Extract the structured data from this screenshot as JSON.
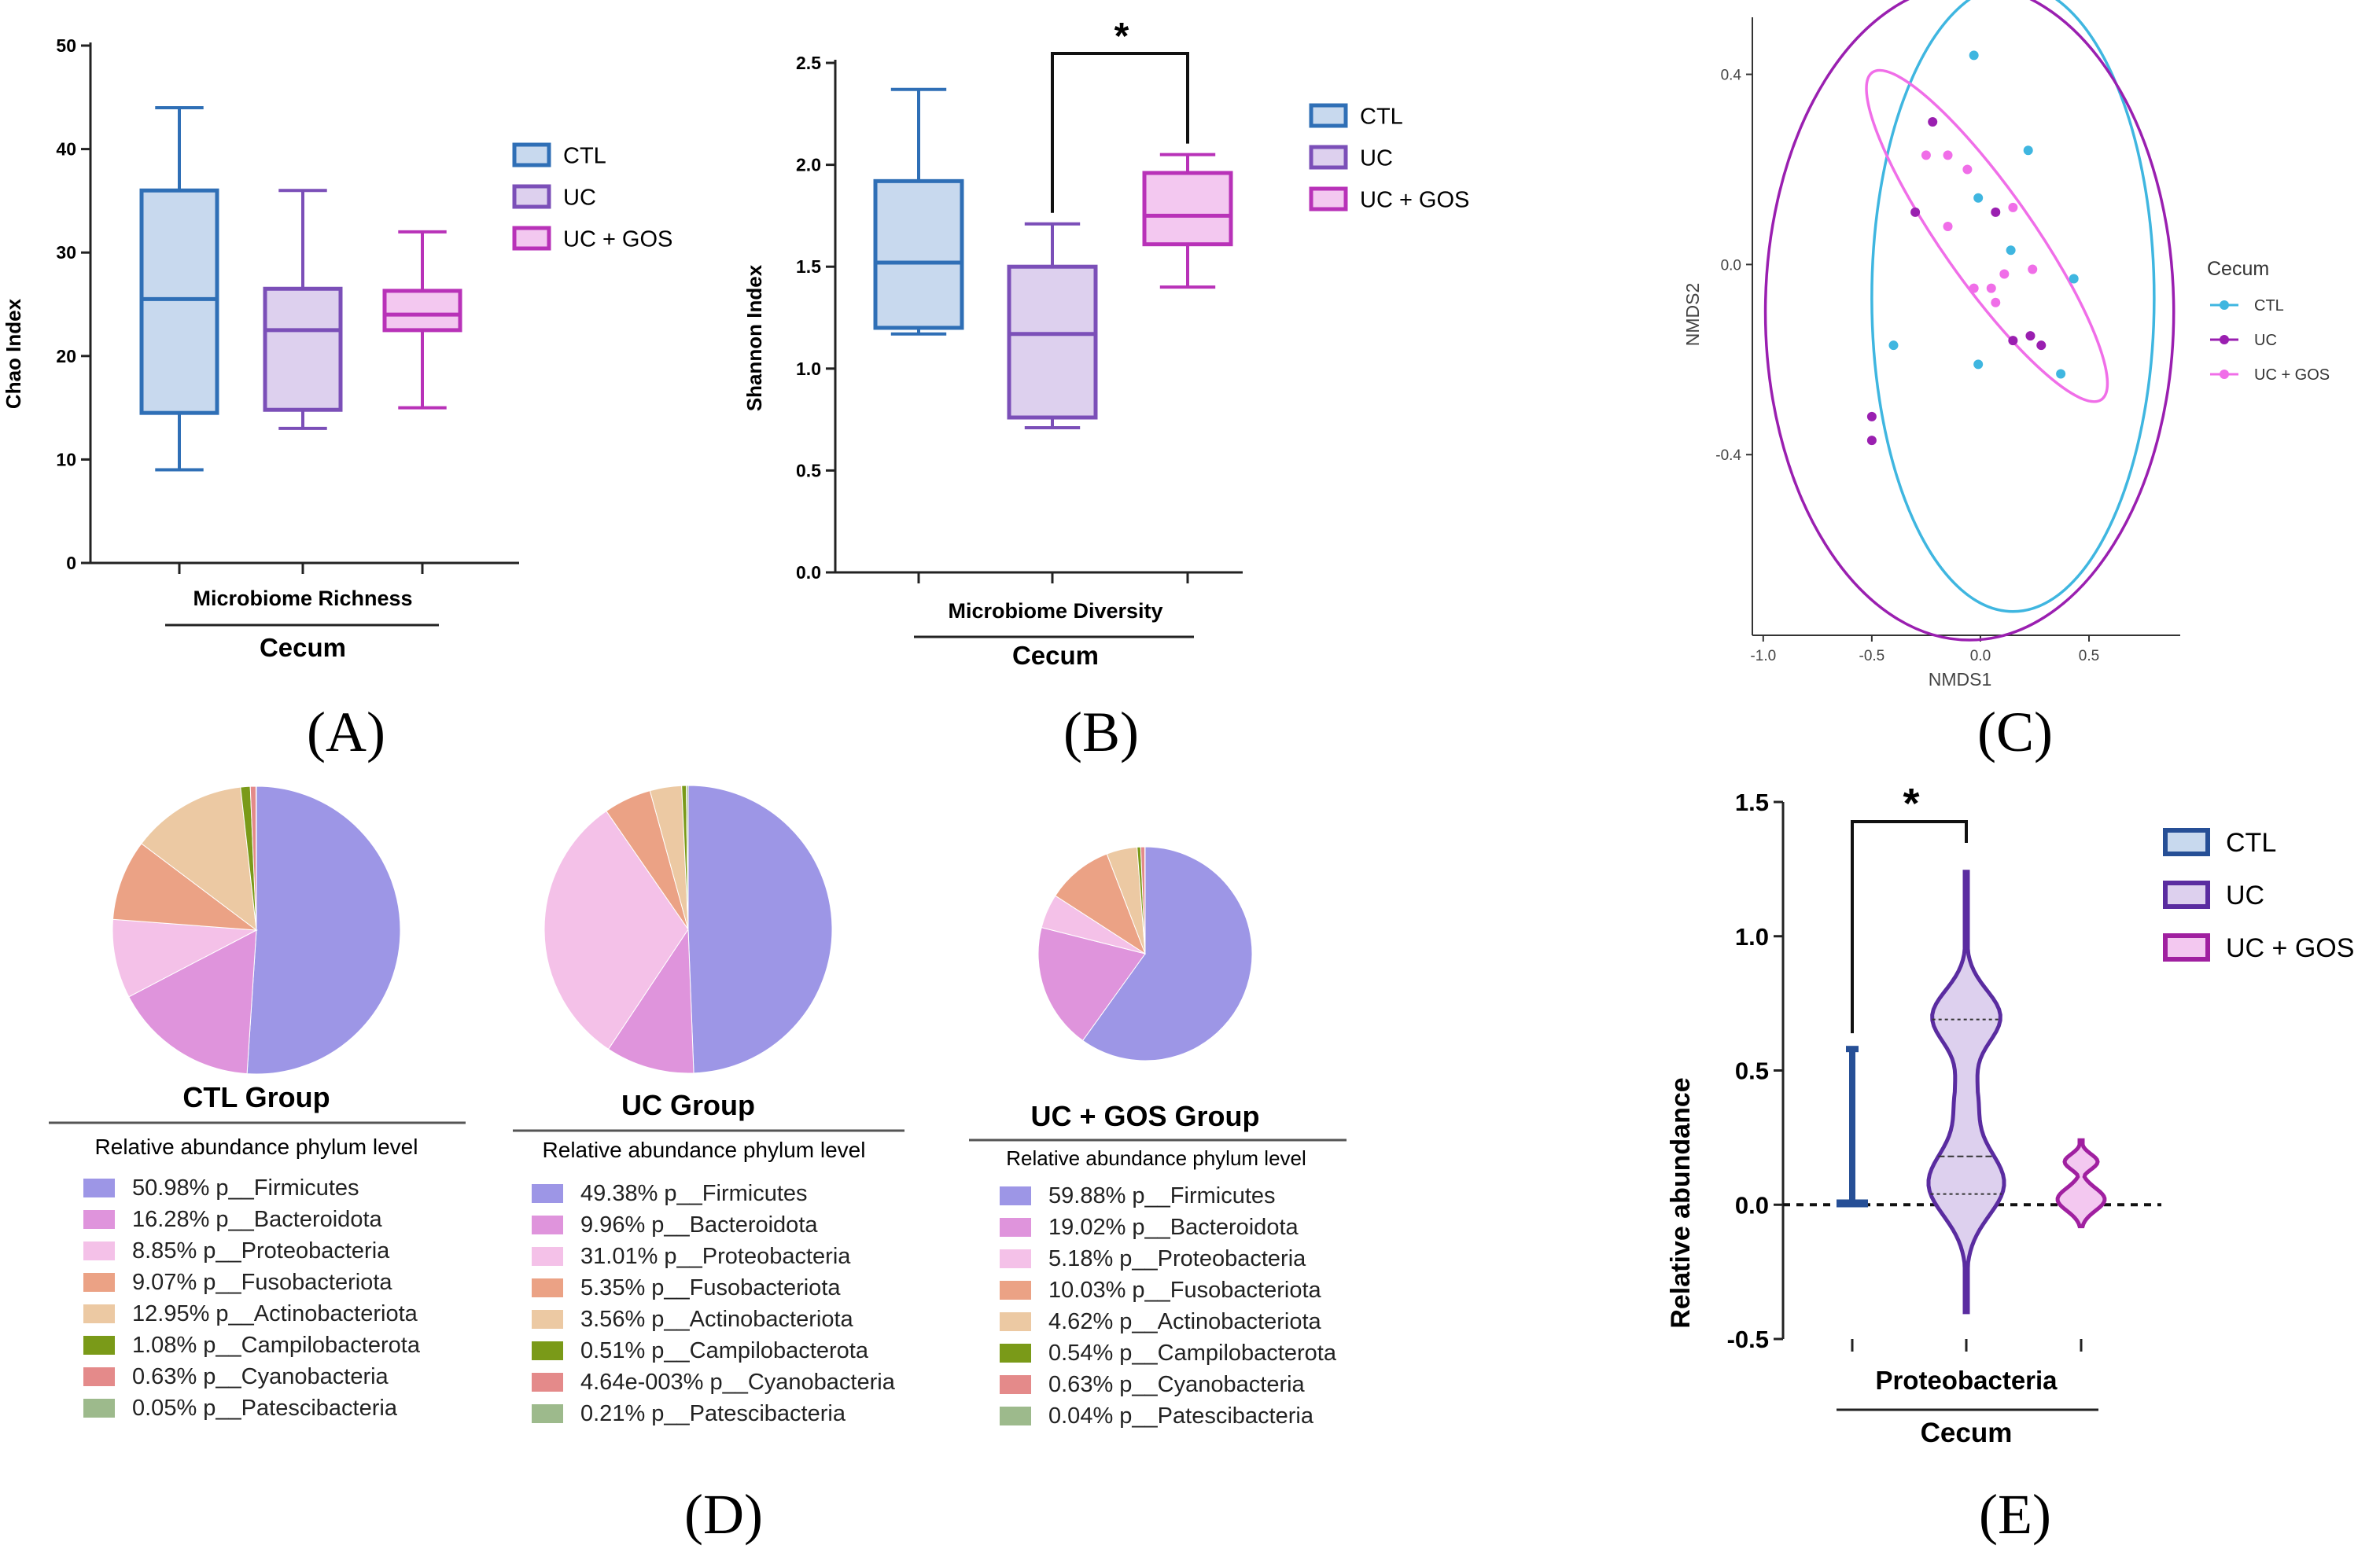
{
  "colors": {
    "ctl": "#2f6fb6",
    "ctl_fill": "#c8d9ee",
    "uc": "#7b4fb8",
    "uc_fill": "#ddd0ee",
    "gos": "#b832b8",
    "gos_fill": "#f3c8f0",
    "nmds_ctl": "#3fb6e0",
    "nmds_uc": "#9a1fb0",
    "nmds_gos": "#f06ee8",
    "vio_ctl": "#264f96",
    "vio_uc": "#5a2ca0",
    "vio_gos": "#a020a0",
    "phyla": [
      "#9d96e6",
      "#df94dc",
      "#f4c1e8",
      "#eba285",
      "#ecc9a3",
      "#7a9a18",
      "#e48a8a",
      "#9dba8c"
    ]
  },
  "legend_groups": [
    "CTL",
    "UC",
    "UC + GOS"
  ],
  "chart_data": [
    {
      "panel": "(A)",
      "type": "box",
      "ylabel": "Chao Index",
      "ylim": [
        0,
        50
      ],
      "yticks": [
        0,
        10,
        20,
        30,
        40,
        50
      ],
      "xlabel": "Microbiome Richness",
      "group_label": "Cecum",
      "series": [
        {
          "name": "CTL",
          "min": 9,
          "q1": 14.5,
          "median": 25.5,
          "q3": 36,
          "max": 44
        },
        {
          "name": "UC",
          "min": 13,
          "q1": 14.8,
          "median": 22.5,
          "q3": 26.5,
          "max": 36
        },
        {
          "name": "UC + GOS",
          "min": 15,
          "q1": 22.5,
          "median": 24,
          "q3": 26.3,
          "max": 32
        }
      ]
    },
    {
      "panel": "(B)",
      "type": "box",
      "ylabel": "Shannon Index",
      "ylim": [
        0,
        2.5
      ],
      "yticks": [
        "0.0",
        "0.5",
        "1.0",
        "1.5",
        "2.0",
        "2.5"
      ],
      "xlabel": "Microbiome Diversity",
      "group_label": "Cecum",
      "significance": "*",
      "series": [
        {
          "name": "CTL",
          "min": 1.17,
          "q1": 1.2,
          "median": 1.52,
          "q3": 1.92,
          "max": 2.37
        },
        {
          "name": "UC",
          "min": 0.71,
          "q1": 0.76,
          "median": 1.17,
          "q3": 1.5,
          "max": 1.71
        },
        {
          "name": "UC + GOS",
          "min": 1.4,
          "q1": 1.61,
          "median": 1.75,
          "q3": 1.96,
          "max": 2.05
        }
      ]
    },
    {
      "panel": "(C)",
      "type": "scatter",
      "xlabel": "NMDS1",
      "ylabel": "NMDS2",
      "xlim": [
        -1.05,
        0.92
      ],
      "ylim": [
        -0.78,
        0.52
      ],
      "xticks": [
        "-1.0",
        "-0.5",
        "0.0",
        "0.5"
      ],
      "yticks": [
        "0.4",
        "0.0",
        "-0.4"
      ],
      "legend_title": "Cecum",
      "series": [
        {
          "name": "CTL",
          "points": [
            [
              -0.03,
              0.44
            ],
            [
              -0.01,
              0.14
            ],
            [
              0.22,
              0.24
            ],
            [
              0.14,
              0.03
            ],
            [
              0.43,
              -0.03
            ],
            [
              -0.4,
              -0.17
            ],
            [
              -0.01,
              -0.21
            ],
            [
              0.37,
              -0.23
            ]
          ],
          "ellipse": {
            "cx": 0.15,
            "cy": -0.07,
            "rx": 0.65,
            "ry": 0.66,
            "angle": 0
          }
        },
        {
          "name": "UC",
          "points": [
            [
              -0.22,
              0.3
            ],
            [
              -0.3,
              0.11
            ],
            [
              0.07,
              0.11
            ],
            [
              0.15,
              -0.16
            ],
            [
              0.23,
              -0.15
            ],
            [
              0.28,
              -0.17
            ],
            [
              -0.5,
              -0.32
            ],
            [
              -0.5,
              -0.37
            ]
          ],
          "ellipse": {
            "cx": -0.05,
            "cy": -0.1,
            "rx": 0.94,
            "ry": 0.69,
            "angle": 0
          }
        },
        {
          "name": "UC + GOS",
          "points": [
            [
              -0.15,
              0.23
            ],
            [
              -0.25,
              0.23
            ],
            [
              -0.06,
              0.2
            ],
            [
              -0.15,
              0.08
            ],
            [
              0.15,
              0.12
            ],
            [
              0.11,
              -0.02
            ],
            [
              0.24,
              -0.01
            ],
            [
              -0.03,
              -0.05
            ],
            [
              0.05,
              -0.05
            ],
            [
              0.07,
              -0.08
            ]
          ],
          "ellipse": {
            "cx": 0.03,
            "cy": 0.06,
            "rx": 0.21,
            "ry": 0.42,
            "angle": -35
          }
        }
      ]
    },
    {
      "panel": "(D)",
      "type": "pie",
      "subtitle": "Relative abundance phylum level",
      "groups": [
        {
          "title": "CTL Group",
          "labels": [
            "p__Firmicutes",
            "p__Bacteroidota",
            "p__Proteobacteria",
            "p__Fusobacteriota",
            "p__Actinobacteriota",
            "p__Campilobacterota",
            "p__Cyanobacteria",
            "p__Patescibacteria"
          ],
          "percent_labels": [
            "50.98%",
            "16.28%",
            "8.85%",
            "9.07%",
            "12.95%",
            "1.08%",
            "0.63%",
            "0.05%"
          ],
          "values": [
            50.98,
            16.28,
            8.85,
            9.07,
            12.95,
            1.08,
            0.63,
            0.05
          ]
        },
        {
          "title": "UC Group",
          "labels": [
            "p__Firmicutes",
            "p__Bacteroidota",
            "p__Proteobacteria",
            "p__Fusobacteriota",
            "p__Actinobacteriota",
            "p__Campilobacterota",
            "p__Cyanobacteria",
            "p__Patescibacteria"
          ],
          "percent_labels": [
            "49.38%",
            "9.96%",
            "31.01%",
            "5.35%",
            "3.56%",
            "0.51%",
            "4.64e-003%",
            "0.21%"
          ],
          "values": [
            49.38,
            9.96,
            31.01,
            5.35,
            3.56,
            0.51,
            0.00464,
            0.21
          ]
        },
        {
          "title": "UC + GOS Group",
          "labels": [
            "p__Firmicutes",
            "p__Bacteroidota",
            "p__Proteobacteria",
            "p__Fusobacteriota",
            "p__Actinobacteriota",
            "p__Campilobacterota",
            "p__Cyanobacteria",
            "p__Patescibacteria"
          ],
          "percent_labels": [
            "59.88%",
            "19.02%",
            "5.18%",
            "10.03%",
            "4.62%",
            "0.54%",
            "0.63%",
            "0.04%"
          ],
          "values": [
            59.88,
            19.02,
            5.18,
            10.03,
            4.62,
            0.54,
            0.63,
            0.04
          ]
        }
      ]
    },
    {
      "panel": "(E)",
      "type": "violin",
      "ylabel": "Relative abundance",
      "ylim": [
        -0.5,
        1.5
      ],
      "yticks": [
        "-0.5",
        "0.0",
        "0.5",
        "1.0",
        "1.5"
      ],
      "xlabel": "Proteobacteria",
      "group_label": "Cecum",
      "significance": "*",
      "series": [
        {
          "name": "CTL",
          "min": 0,
          "max": 0.58,
          "median": 0.005
        },
        {
          "name": "UC",
          "min": -0.4,
          "max": 1.24,
          "median": 0.18,
          "q1": 0.04,
          "q3": 0.69
        },
        {
          "name": "UC + GOS",
          "min": -0.08,
          "max": 0.24,
          "median": 0.03
        }
      ]
    }
  ]
}
